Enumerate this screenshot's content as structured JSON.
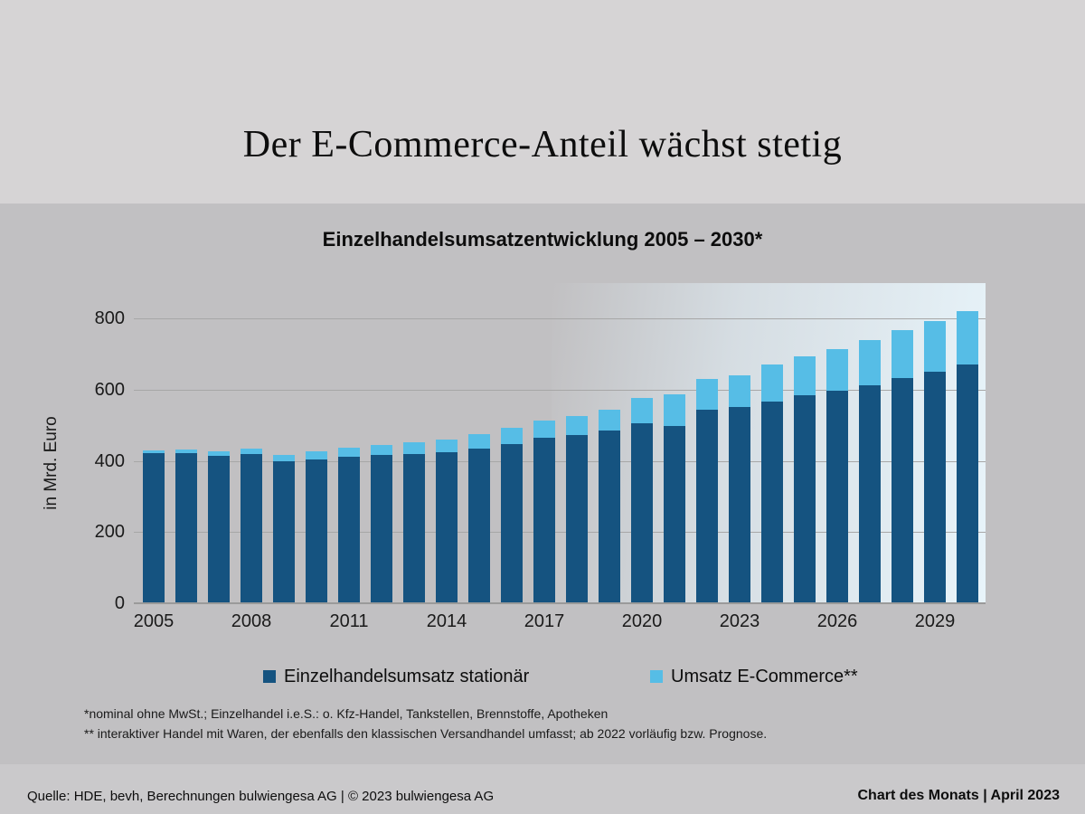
{
  "header": {
    "title": "Der E-Commerce-Anteil wächst stetig"
  },
  "chart": {
    "title": "Einzelhandelsumsatzentwicklung 2005 – 2030*",
    "y_axis_label": "in Mrd. Euro",
    "legend": [
      {
        "label": "Einzelhandelsumsatz stationär",
        "color": "#155380"
      },
      {
        "label": "Umsatz E-Commerce**",
        "color": "#56bde6"
      }
    ],
    "footnotes": [
      "*nominal ohne MwSt.; Einzelhandel i.e.S.: o. Kfz-Handel, Tankstellen, Brennstoffe, Apotheken",
      "** interaktiver Handel mit Waren, der ebenfalls den klassischen Versandhandel umfasst; ab 2022 vorläufig bzw. Prognose."
    ]
  },
  "chart_data": {
    "type": "bar",
    "stacked": true,
    "title": "Einzelhandelsumsatzentwicklung 2005 – 2030*",
    "xlabel": "",
    "ylabel": "in Mrd. Euro",
    "unit": "Mrd. Euro",
    "ylim": [
      0,
      900
    ],
    "yticks": [
      0,
      200,
      400,
      600,
      800
    ],
    "grid": true,
    "legend_position": "bottom",
    "categories": [
      2005,
      2006,
      2007,
      2008,
      2009,
      2010,
      2011,
      2012,
      2013,
      2014,
      2015,
      2016,
      2017,
      2018,
      2019,
      2020,
      2021,
      2022,
      2023,
      2024,
      2025,
      2026,
      2027,
      2028,
      2029,
      2030
    ],
    "xtick_labels": [
      "2005",
      "2008",
      "2011",
      "2014",
      "2017",
      "2020",
      "2023",
      "2026",
      "2029"
    ],
    "series": [
      {
        "name": "Einzelhandelsumsatz stationär",
        "color": "#155380",
        "values": [
          421,
          423,
          414,
          419,
          400,
          405,
          413,
          417,
          419,
          424,
          436,
          447,
          465,
          474,
          485,
          506,
          498,
          545,
          551,
          568,
          585,
          597,
          613,
          632,
          650,
          671
        ]
      },
      {
        "name": "Umsatz E-Commerce**",
        "color": "#56bde6",
        "values": [
          8,
          10,
          13,
          15,
          18,
          23,
          24,
          29,
          33,
          35,
          39,
          47,
          49,
          53,
          59,
          71,
          90,
          85,
          90,
          102,
          108,
          117,
          127,
          136,
          143,
          149
        ]
      }
    ],
    "forecast_gradient_from_x": 2017.5
  },
  "footer": {
    "source": "Quelle: HDE, bevh, Berechnungen bulwiengesa AG | © 2023 bulwiengesa AG",
    "right": "Chart des Monats | April 2023"
  }
}
